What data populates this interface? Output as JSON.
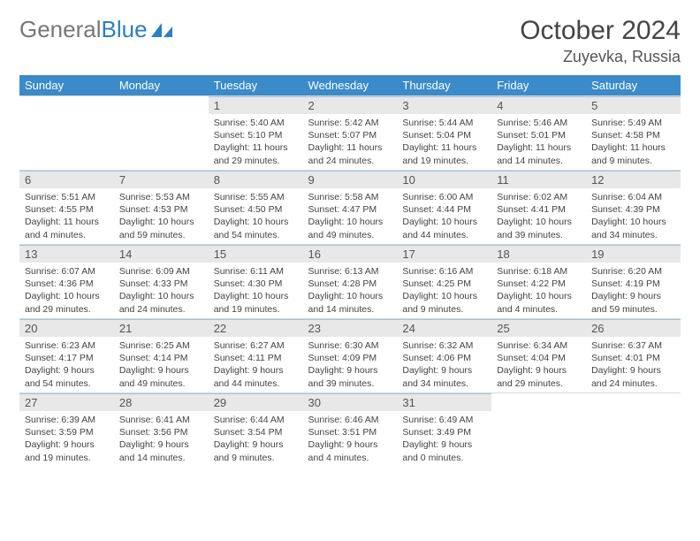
{
  "brand": {
    "part1": "General",
    "part2": "Blue",
    "logo_color": "#2b7fc3",
    "text_color_muted": "#777"
  },
  "header": {
    "month_title": "October 2024",
    "location": "Zuyevka, Russia"
  },
  "colors": {
    "header_bg": "#3b8bca",
    "header_text": "#ffffff",
    "daynum_bg": "#e8e8e8",
    "daynum_border": "#a8c3d9",
    "cell_border": "#d8d8d8",
    "body_text": "#444444",
    "background": "#ffffff"
  },
  "typography": {
    "month_title_fontsize": 30,
    "location_fontsize": 18,
    "weekday_fontsize": 13,
    "daynum_fontsize": 13,
    "details_fontsize": 10.5
  },
  "calendar": {
    "week_start": "Sunday",
    "weekdays": [
      "Sunday",
      "Monday",
      "Tuesday",
      "Wednesday",
      "Thursday",
      "Friday",
      "Saturday"
    ],
    "leading_blanks": 2,
    "days": [
      {
        "n": 1,
        "sunrise": "5:40 AM",
        "sunset": "5:10 PM",
        "daylight": "11 hours and 29 minutes."
      },
      {
        "n": 2,
        "sunrise": "5:42 AM",
        "sunset": "5:07 PM",
        "daylight": "11 hours and 24 minutes."
      },
      {
        "n": 3,
        "sunrise": "5:44 AM",
        "sunset": "5:04 PM",
        "daylight": "11 hours and 19 minutes."
      },
      {
        "n": 4,
        "sunrise": "5:46 AM",
        "sunset": "5:01 PM",
        "daylight": "11 hours and 14 minutes."
      },
      {
        "n": 5,
        "sunrise": "5:49 AM",
        "sunset": "4:58 PM",
        "daylight": "11 hours and 9 minutes."
      },
      {
        "n": 6,
        "sunrise": "5:51 AM",
        "sunset": "4:55 PM",
        "daylight": "11 hours and 4 minutes."
      },
      {
        "n": 7,
        "sunrise": "5:53 AM",
        "sunset": "4:53 PM",
        "daylight": "10 hours and 59 minutes."
      },
      {
        "n": 8,
        "sunrise": "5:55 AM",
        "sunset": "4:50 PM",
        "daylight": "10 hours and 54 minutes."
      },
      {
        "n": 9,
        "sunrise": "5:58 AM",
        "sunset": "4:47 PM",
        "daylight": "10 hours and 49 minutes."
      },
      {
        "n": 10,
        "sunrise": "6:00 AM",
        "sunset": "4:44 PM",
        "daylight": "10 hours and 44 minutes."
      },
      {
        "n": 11,
        "sunrise": "6:02 AM",
        "sunset": "4:41 PM",
        "daylight": "10 hours and 39 minutes."
      },
      {
        "n": 12,
        "sunrise": "6:04 AM",
        "sunset": "4:39 PM",
        "daylight": "10 hours and 34 minutes."
      },
      {
        "n": 13,
        "sunrise": "6:07 AM",
        "sunset": "4:36 PM",
        "daylight": "10 hours and 29 minutes."
      },
      {
        "n": 14,
        "sunrise": "6:09 AM",
        "sunset": "4:33 PM",
        "daylight": "10 hours and 24 minutes."
      },
      {
        "n": 15,
        "sunrise": "6:11 AM",
        "sunset": "4:30 PM",
        "daylight": "10 hours and 19 minutes."
      },
      {
        "n": 16,
        "sunrise": "6:13 AM",
        "sunset": "4:28 PM",
        "daylight": "10 hours and 14 minutes."
      },
      {
        "n": 17,
        "sunrise": "6:16 AM",
        "sunset": "4:25 PM",
        "daylight": "10 hours and 9 minutes."
      },
      {
        "n": 18,
        "sunrise": "6:18 AM",
        "sunset": "4:22 PM",
        "daylight": "10 hours and 4 minutes."
      },
      {
        "n": 19,
        "sunrise": "6:20 AM",
        "sunset": "4:19 PM",
        "daylight": "9 hours and 59 minutes."
      },
      {
        "n": 20,
        "sunrise": "6:23 AM",
        "sunset": "4:17 PM",
        "daylight": "9 hours and 54 minutes."
      },
      {
        "n": 21,
        "sunrise": "6:25 AM",
        "sunset": "4:14 PM",
        "daylight": "9 hours and 49 minutes."
      },
      {
        "n": 22,
        "sunrise": "6:27 AM",
        "sunset": "4:11 PM",
        "daylight": "9 hours and 44 minutes."
      },
      {
        "n": 23,
        "sunrise": "6:30 AM",
        "sunset": "4:09 PM",
        "daylight": "9 hours and 39 minutes."
      },
      {
        "n": 24,
        "sunrise": "6:32 AM",
        "sunset": "4:06 PM",
        "daylight": "9 hours and 34 minutes."
      },
      {
        "n": 25,
        "sunrise": "6:34 AM",
        "sunset": "4:04 PM",
        "daylight": "9 hours and 29 minutes."
      },
      {
        "n": 26,
        "sunrise": "6:37 AM",
        "sunset": "4:01 PM",
        "daylight": "9 hours and 24 minutes."
      },
      {
        "n": 27,
        "sunrise": "6:39 AM",
        "sunset": "3:59 PM",
        "daylight": "9 hours and 19 minutes."
      },
      {
        "n": 28,
        "sunrise": "6:41 AM",
        "sunset": "3:56 PM",
        "daylight": "9 hours and 14 minutes."
      },
      {
        "n": 29,
        "sunrise": "6:44 AM",
        "sunset": "3:54 PM",
        "daylight": "9 hours and 9 minutes."
      },
      {
        "n": 30,
        "sunrise": "6:46 AM",
        "sunset": "3:51 PM",
        "daylight": "9 hours and 4 minutes."
      },
      {
        "n": 31,
        "sunrise": "6:49 AM",
        "sunset": "3:49 PM",
        "daylight": "9 hours and 0 minutes."
      }
    ],
    "labels": {
      "sunrise": "Sunrise:",
      "sunset": "Sunset:",
      "daylight": "Daylight:"
    }
  }
}
